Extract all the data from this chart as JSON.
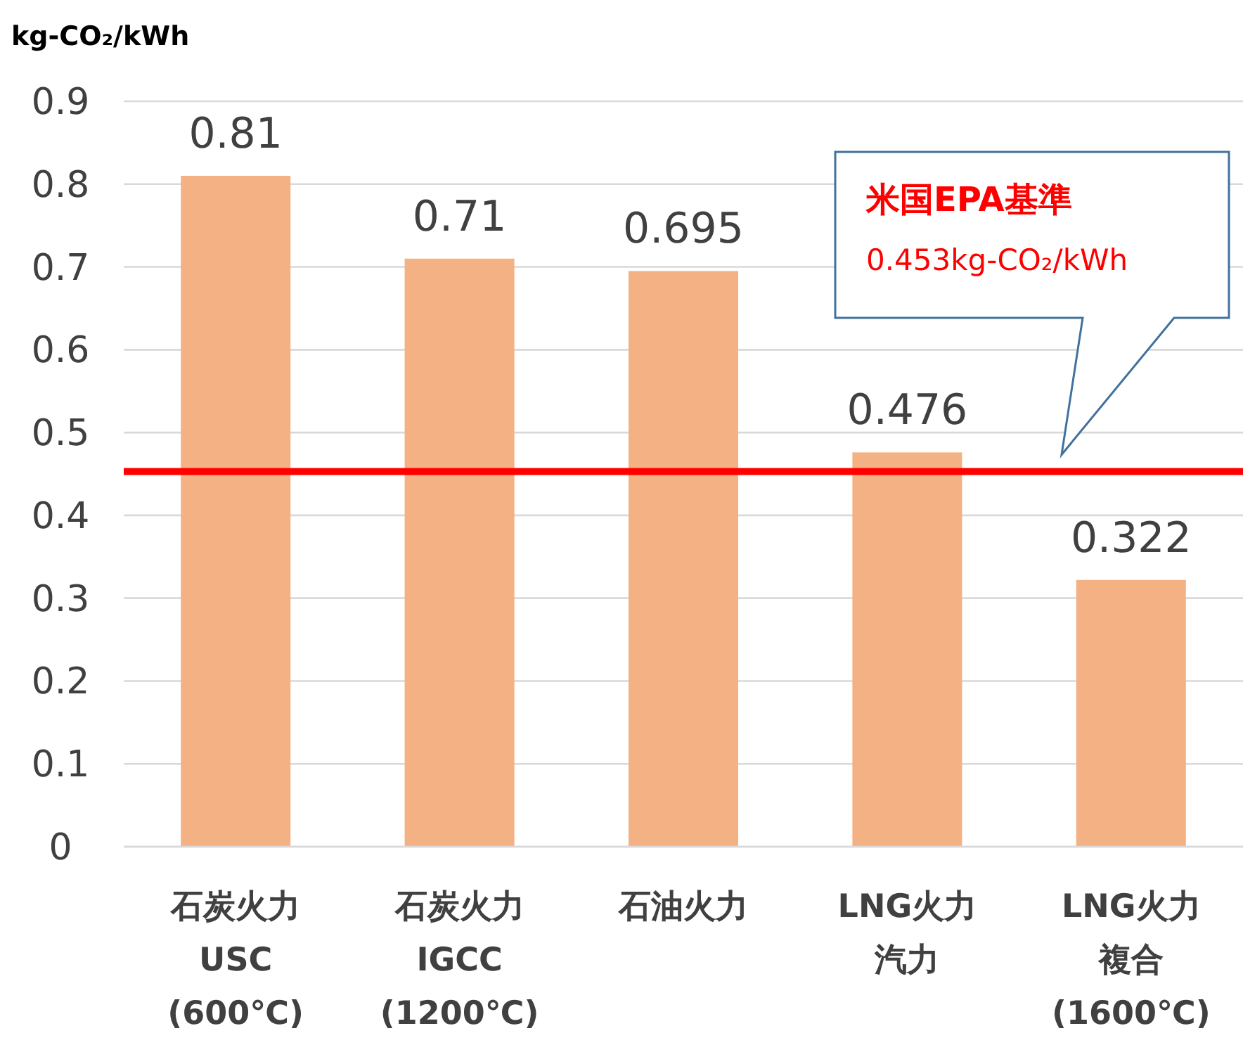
{
  "chart_data": {
    "type": "bar",
    "ylabel": "kg-CO₂/kWh",
    "categories": [
      "石炭火力\nUSC\n(600℃)",
      "石炭火力\nIGCC\n(1200℃)",
      "石油火力",
      "LNG火力汽力",
      "LNG火力複合\n(1600℃)"
    ],
    "values": [
      0.81,
      0.71,
      0.695,
      0.476,
      0.322
    ],
    "color": "#f4b183",
    "data_labels": true,
    "ylim": [
      0,
      0.9
    ],
    "yticks": [
      {
        "value": 0,
        "label": "0"
      },
      0.1,
      0.2,
      0.3,
      0.4,
      0.5,
      0.6,
      0.7,
      0.8,
      0.9
    ],
    "grid": "y",
    "ref_lines": [
      {
        "axis": "y",
        "value": 0.453,
        "label": "米国EPA基準\n0.453kg-CO₂/kWh",
        "color": "#ff0000"
      }
    ]
  }
}
